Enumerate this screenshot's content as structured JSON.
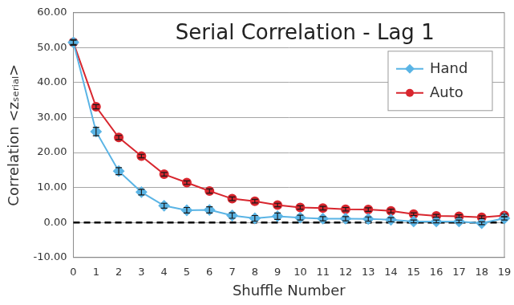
{
  "chart_data": {
    "type": "line",
    "title": "Serial Correlation - Lag 1",
    "xlabel": "Shuffle Number",
    "ylabel": "Correlation <zₛₑᵣᵢₐₗ>",
    "x": [
      0,
      1,
      2,
      3,
      4,
      5,
      6,
      7,
      8,
      9,
      10,
      11,
      12,
      13,
      14,
      15,
      16,
      17,
      18,
      19
    ],
    "series": [
      {
        "name": "Hand",
        "color": "#5ab4e5",
        "marker": "diamond",
        "values": [
          51.5,
          26.0,
          14.7,
          8.7,
          4.8,
          3.5,
          3.6,
          2.0,
          1.2,
          1.8,
          1.4,
          1.1,
          1.1,
          1.0,
          0.8,
          0.3,
          0.3,
          0.3,
          -0.2,
          1.2
        ],
        "errors": [
          0.8,
          1.2,
          1.0,
          0.8,
          0.7,
          0.8,
          0.9,
          0.8,
          0.8,
          0.9,
          0.7,
          0.6,
          0.6,
          0.6,
          0.6,
          0.4,
          0.4,
          0.4,
          0.4,
          0.5
        ]
      },
      {
        "name": "Auto",
        "color": "#d8262e",
        "marker": "circle",
        "values": [
          51.5,
          33.1,
          24.3,
          19.0,
          13.8,
          11.4,
          9.0,
          6.8,
          6.1,
          5.0,
          4.3,
          4.1,
          3.8,
          3.7,
          3.3,
          2.4,
          1.9,
          1.8,
          1.5,
          2.0
        ],
        "errors": [
          0.6,
          0.6,
          0.6,
          0.5,
          0.5,
          0.5,
          0.6,
          0.5,
          0.5,
          0.5,
          0.5,
          0.5,
          0.5,
          0.5,
          0.5,
          0.4,
          0.4,
          0.4,
          0.4,
          0.4
        ]
      }
    ],
    "xlim": [
      0,
      19
    ],
    "xticks": [
      0,
      1,
      2,
      3,
      4,
      5,
      6,
      7,
      8,
      9,
      10,
      11,
      12,
      13,
      14,
      15,
      16,
      17,
      18,
      19
    ],
    "ylim": [
      -10,
      60
    ],
    "yticks": [
      {
        "value": -10,
        "label": "-10.00"
      },
      {
        "value": 0,
        "label": "0.00"
      },
      {
        "value": 10,
        "label": "10.00"
      },
      {
        "value": 20,
        "label": "20.00"
      },
      {
        "value": 30,
        "label": "30.00"
      },
      {
        "value": 40,
        "label": "40.00"
      },
      {
        "value": 50,
        "label": "50.00"
      },
      {
        "value": 60,
        "label": "60.00"
      }
    ],
    "grid": true,
    "legend": "upper right",
    "reference_line": 0
  }
}
